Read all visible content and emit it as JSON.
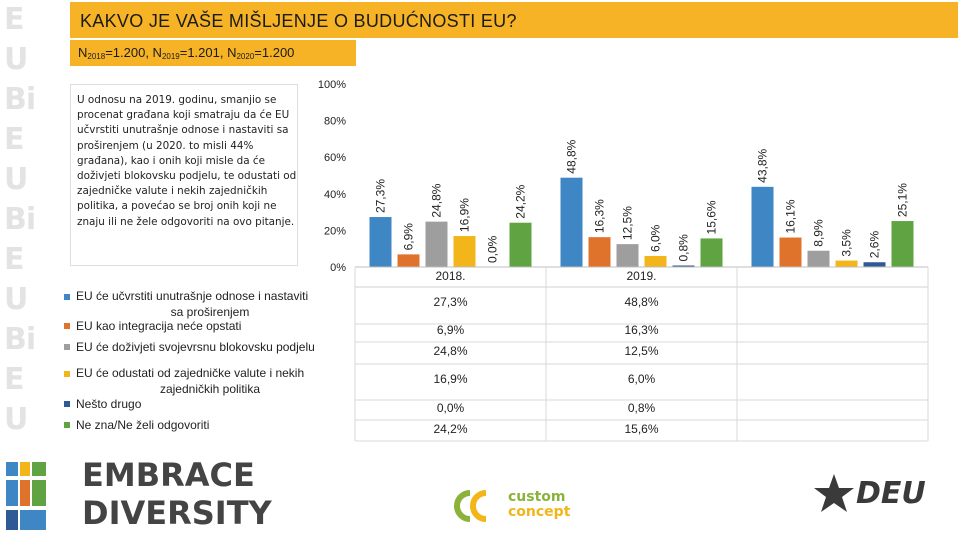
{
  "title": "KAKVO JE VAŠE MIŠLJENJE O BUDUĆNOSTI EU?",
  "sample_n": [
    {
      "label": "N",
      "sub": "2018",
      "value": "=1.200"
    },
    {
      "label": "N",
      "sub": "2019",
      "value": "=1.201"
    },
    {
      "label": "N",
      "sub": "2020",
      "value": "=1.200"
    }
  ],
  "sample_separator": ", ",
  "note": "U odnosu na 2019. godinu, smanjio se procenat građana koji smatraju da će EU učvrstiti unutrašnje odnose i nastaviti sa proširenjem (u 2020. to misli 44% građana), kao i onih koji misle da će doživjeti blokovsku podjelu, te odustati od zajedničke valute i nekih zajedničkih politika, a povećao se broj onih koji ne znaju ili ne žele odgovoriti na ovo pitanje.",
  "logos": {
    "embrace_line1": "EMBRACE",
    "embrace_line2": "DIVERSITY",
    "custom_line1": "custom",
    "custom_line2": "concept",
    "deu": "DEU"
  },
  "colors": {
    "title_bar": "#f6b325",
    "series": [
      "#3f86c4",
      "#e0732c",
      "#9e9e9e",
      "#f2b51a",
      "#2f5a96",
      "#5fa343"
    ]
  },
  "chart_data": {
    "type": "bar",
    "categories": [
      "2018.",
      "2019.",
      ""
    ],
    "ylim": [
      0,
      100
    ],
    "yticks": [
      "0%",
      "20%",
      "40%",
      "60%",
      "80%",
      "100%"
    ],
    "series": [
      {
        "name": "EU će učvrstiti unutrašnje odnose i nastaviti sa proširenjem",
        "values": [
          27.3,
          48.8,
          43.8
        ],
        "labels": [
          "27,3%",
          "48,8%",
          "43,8%"
        ]
      },
      {
        "name": "EU kao integracija neće opstati",
        "values": [
          6.9,
          16.3,
          16.1
        ],
        "labels": [
          "6,9%",
          "16,3%",
          "16,1%"
        ]
      },
      {
        "name": "EU će doživjeti svojevrsnu blokovsku podjelu",
        "values": [
          24.8,
          12.5,
          8.9
        ],
        "labels": [
          "24,8%",
          "12,5%",
          "8,9%"
        ]
      },
      {
        "name": "EU će odustati od zajedničke valute i nekih zajedničkih politika",
        "values": [
          16.9,
          6.0,
          3.5
        ],
        "labels": [
          "16,9%",
          "6,0%",
          "3,5%"
        ]
      },
      {
        "name": "Nešto drugo",
        "values": [
          0.0,
          0.8,
          2.6
        ],
        "labels": [
          "0,0%",
          "0,8%",
          "2,6%"
        ]
      },
      {
        "name": "Ne zna/Ne želi odgovoriti",
        "values": [
          24.2,
          15.6,
          25.1
        ],
        "labels": [
          "24,2%",
          "15,6%",
          "25,1%"
        ]
      }
    ],
    "table_values": [
      [
        "27,3%",
        "48,8%",
        ""
      ],
      [
        "6,9%",
        "16,3%",
        ""
      ],
      [
        "24,8%",
        "12,5%",
        ""
      ],
      [
        "16,9%",
        "6,0%",
        ""
      ],
      [
        "0,0%",
        "0,8%",
        ""
      ],
      [
        "24,2%",
        "15,6%",
        ""
      ]
    ]
  }
}
